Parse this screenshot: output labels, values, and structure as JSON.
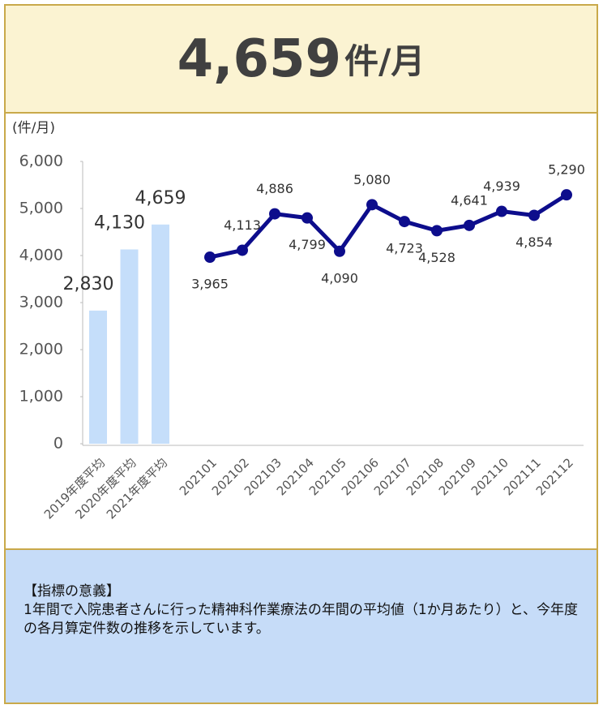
{
  "header": {
    "value": "4,659",
    "unit": "件/月"
  },
  "chart_data": {
    "type": "combo",
    "y_unit": "(件/月)",
    "ylim": [
      0,
      6000
    ],
    "yticks": [
      0,
      {
        "value": 1000,
        "label": "1,000"
      },
      {
        "value": 2000,
        "label": "2,000"
      },
      {
        "value": 3000,
        "label": "3,000"
      },
      {
        "value": 4000,
        "label": "4,000"
      },
      {
        "value": 5000,
        "label": "5,000"
      },
      {
        "value": 6000,
        "label": "6,000"
      }
    ],
    "series": [
      {
        "type": "bar",
        "color": "#c5defa",
        "categories": [
          "2019年度平均",
          "2020年度平均",
          "2021年度平均"
        ],
        "values": [
          2830,
          4130,
          4659
        ],
        "value_labels": [
          "2,830",
          "4,130",
          "4,659"
        ]
      },
      {
        "type": "line",
        "color": "#0d0d8c",
        "categories": [
          "202101",
          "202102",
          "202103",
          "202104",
          "202105",
          "202106",
          "202107",
          "202108",
          "202109",
          "202110",
          "202111",
          "202112"
        ],
        "values": [
          3965,
          4113,
          4886,
          4799,
          4090,
          5080,
          4723,
          4528,
          4641,
          4939,
          4854,
          5290
        ],
        "value_labels": [
          "3,965",
          "4,113",
          "4,886",
          "4,799",
          "4,090",
          "5,080",
          "4,723",
          "4,528",
          "4,641",
          "4,939",
          "4,854",
          "5,290"
        ]
      }
    ]
  },
  "footer": {
    "title": "【指標の意義】",
    "text": "1年間で入院患者さんに行った精神科作業療法の年間の平均値（1か月あたり）と、今年度の各月算定件数の推移を示しています。"
  }
}
